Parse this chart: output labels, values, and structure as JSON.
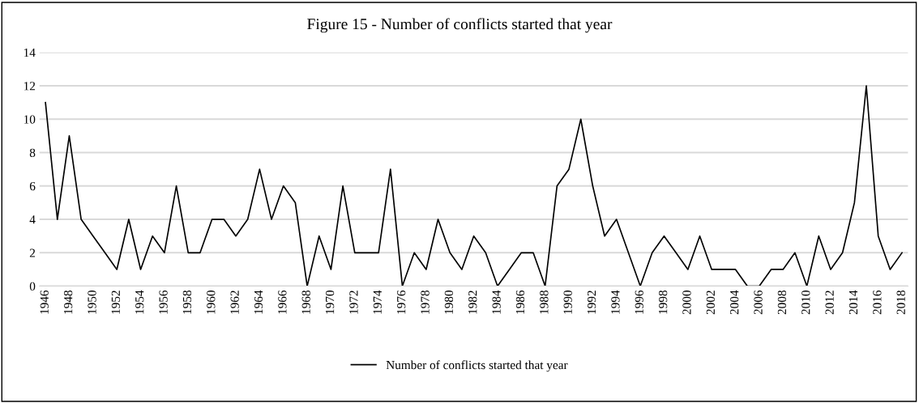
{
  "chart_data": {
    "type": "line",
    "title": "Figure 15 - Number of conflicts started that year",
    "categories": [
      "1946",
      null,
      "1948",
      null,
      "1950",
      null,
      "1952",
      null,
      "1954",
      null,
      "1956",
      null,
      "1958",
      null,
      "1960",
      null,
      "1962",
      null,
      "1964",
      null,
      "1966",
      null,
      "1968",
      null,
      "1970",
      null,
      "1972",
      null,
      "1974",
      null,
      "1976",
      null,
      "1978",
      null,
      "1980",
      null,
      "1982",
      null,
      "1984",
      null,
      "1986",
      null,
      "1988",
      null,
      "1990",
      null,
      "1992",
      null,
      "1994",
      null,
      "1996",
      null,
      "1998",
      null,
      "2000",
      null,
      "2002",
      null,
      "2004",
      null,
      "2006",
      null,
      "2008",
      null,
      "2010",
      null,
      "2012",
      null,
      "2014",
      null,
      "2016",
      null,
      "2018"
    ],
    "series": [
      {
        "name": "Number of conflicts started that year",
        "color": "#000000",
        "values": [
          11,
          4,
          9,
          4,
          3,
          2,
          1,
          4,
          1,
          3,
          2,
          6,
          2,
          2,
          4,
          4,
          3,
          4,
          7,
          4,
          6,
          5,
          0,
          3,
          1,
          6,
          2,
          2,
          2,
          7,
          0,
          2,
          1,
          4,
          2,
          1,
          3,
          2,
          0,
          1,
          2,
          2,
          0,
          6,
          7,
          10,
          6,
          3,
          4,
          2,
          0,
          2,
          3,
          2,
          1,
          3,
          1,
          1,
          1,
          0,
          0,
          1,
          1,
          2,
          0,
          3,
          1,
          2,
          5,
          12,
          3,
          1,
          2
        ]
      }
    ],
    "ylim": [
      0,
      14
    ],
    "yticks": [
      0,
      2,
      4,
      6,
      8,
      10,
      12,
      14
    ],
    "grid": "y",
    "legend": "bottom",
    "marker": "none",
    "line_style": "solid"
  }
}
